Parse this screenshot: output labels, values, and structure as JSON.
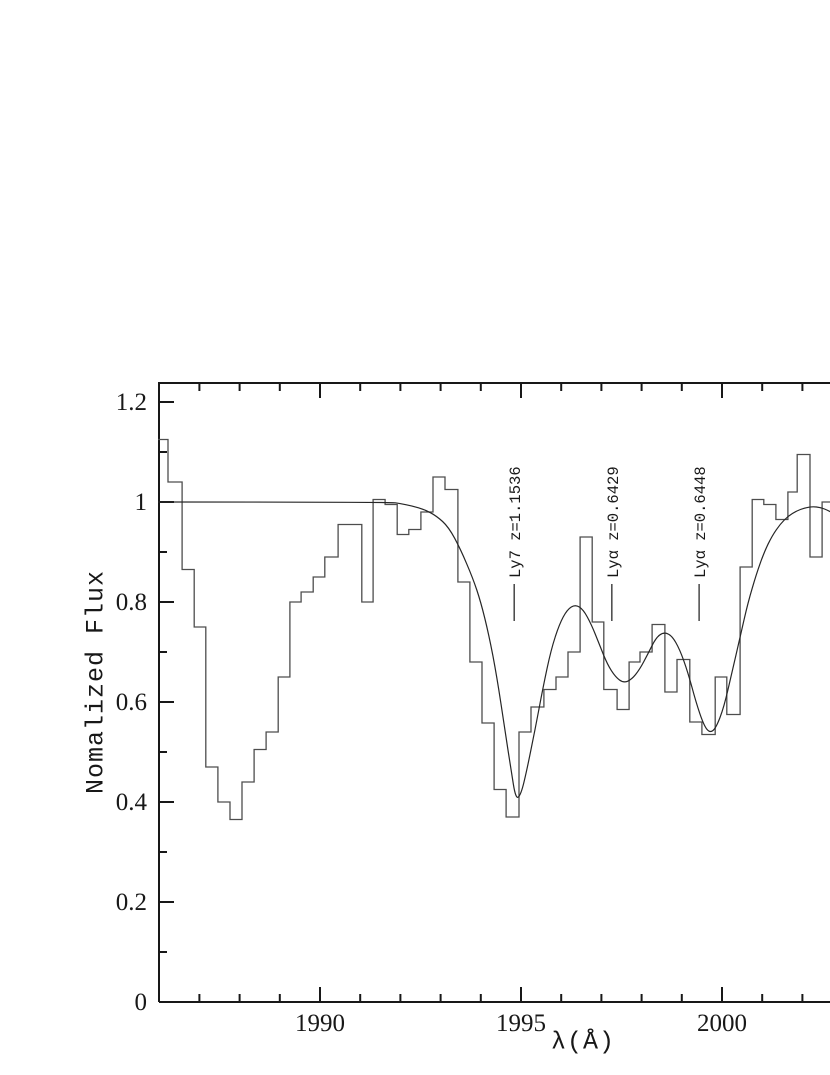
{
  "figure": {
    "background": "#ffffff",
    "ink_color": "#181818",
    "histogram_color": "#4d4d4d",
    "model_color": "#262626"
  },
  "chart_data": {
    "type": "line",
    "title": "",
    "xlabel": "λ(Å)",
    "ylabel": "Nomalized Flux",
    "x_visible_range": [
      1985.97,
      2002.7
    ],
    "ylim": [
      0,
      1.24
    ],
    "grid": false,
    "legend": "none",
    "x_major_ticks": [
      {
        "value": 1990,
        "label": "1990"
      },
      {
        "value": 1995,
        "label": "1995"
      },
      {
        "value": 2000,
        "label": "2000"
      }
    ],
    "x_minor_ticks": {
      "start": 1986,
      "end": 2002,
      "step": 1
    },
    "y_major_ticks": [
      {
        "value": 1.2,
        "label": "1.2"
      },
      {
        "value": 1.0,
        "label": "1"
      },
      {
        "value": 0.8,
        "label": "0.8"
      },
      {
        "value": 0.6,
        "label": "0.6"
      },
      {
        "value": 0.4,
        "label": "0.4"
      },
      {
        "value": 0.2,
        "label": "0.2"
      },
      {
        "value": 0,
        "label": "0"
      }
    ],
    "y_minor_ticks": {
      "start": 0.1,
      "end": 1.2,
      "step": 0.1
    },
    "series": [
      {
        "name": "observed-spectrum-histogram",
        "style": "step",
        "bin_edges": [
          1985.97,
          1986.22,
          1986.57,
          1986.87,
          1987.16,
          1987.46,
          1987.76,
          1988.06,
          1988.36,
          1988.66,
          1988.96,
          1989.25,
          1989.53,
          1989.83,
          1990.12,
          1990.45,
          1990.75,
          1991.04,
          1991.32,
          1991.62,
          1991.92,
          1992.21,
          1992.51,
          1992.81,
          1993.11,
          1993.43,
          1993.73,
          1994.03,
          1994.33,
          1994.63,
          1994.95,
          1995.25,
          1995.57,
          1995.87,
          1996.17,
          1996.47,
          1996.77,
          1997.06,
          1997.39,
          1997.69,
          1997.96,
          1998.26,
          1998.58,
          1998.88,
          1999.2,
          1999.5,
          1999.83,
          2000.12,
          2000.45,
          2000.75,
          2001.04,
          2001.34,
          2001.64,
          2001.87,
          2002.19,
          2002.49,
          2002.95
        ],
        "flux": [
          1.125,
          1.04,
          0.865,
          0.75,
          0.47,
          0.4,
          0.365,
          0.44,
          0.505,
          0.54,
          0.65,
          0.8,
          0.82,
          0.85,
          0.89,
          0.955,
          0.955,
          0.8,
          1.005,
          0.995,
          0.935,
          0.945,
          0.98,
          1.05,
          1.025,
          0.84,
          0.68,
          0.558,
          0.425,
          0.37,
          0.54,
          0.59,
          0.625,
          0.65,
          0.7,
          0.93,
          0.76,
          0.625,
          0.585,
          0.68,
          0.7,
          0.755,
          0.62,
          0.685,
          0.56,
          0.535,
          0.65,
          0.575,
          0.87,
          1.005,
          0.995,
          0.965,
          1.02,
          1.095,
          0.89,
          1.0
        ]
      },
      {
        "name": "model-fit",
        "style": "smooth",
        "points": [
          [
            1985.97,
            1.0
          ],
          [
            1991.75,
            1.0
          ],
          [
            1992.0,
            0.997
          ],
          [
            1992.3,
            0.992
          ],
          [
            1992.6,
            0.985
          ],
          [
            1992.9,
            0.972
          ],
          [
            1993.2,
            0.95
          ],
          [
            1993.5,
            0.905
          ],
          [
            1993.8,
            0.848
          ],
          [
            1994.0,
            0.8
          ],
          [
            1994.2,
            0.735
          ],
          [
            1994.4,
            0.65
          ],
          [
            1994.6,
            0.545
          ],
          [
            1994.75,
            0.465
          ],
          [
            1994.87,
            0.405
          ],
          [
            1995.0,
            0.415
          ],
          [
            1995.15,
            0.465
          ],
          [
            1995.35,
            0.545
          ],
          [
            1995.55,
            0.63
          ],
          [
            1995.75,
            0.705
          ],
          [
            1995.95,
            0.755
          ],
          [
            1996.15,
            0.785
          ],
          [
            1996.35,
            0.795
          ],
          [
            1996.55,
            0.785
          ],
          [
            1996.75,
            0.755
          ],
          [
            1996.95,
            0.715
          ],
          [
            1997.15,
            0.675
          ],
          [
            1997.35,
            0.65
          ],
          [
            1997.55,
            0.638
          ],
          [
            1997.75,
            0.645
          ],
          [
            1997.95,
            0.665
          ],
          [
            1998.15,
            0.695
          ],
          [
            1998.35,
            0.728
          ],
          [
            1998.55,
            0.74
          ],
          [
            1998.75,
            0.733
          ],
          [
            1998.95,
            0.705
          ],
          [
            1999.15,
            0.66
          ],
          [
            1999.35,
            0.6
          ],
          [
            1999.55,
            0.553
          ],
          [
            1999.7,
            0.538
          ],
          [
            1999.85,
            0.548
          ],
          [
            2000.05,
            0.59
          ],
          [
            2000.25,
            0.66
          ],
          [
            2000.45,
            0.73
          ],
          [
            2000.65,
            0.8
          ],
          [
            2000.85,
            0.855
          ],
          [
            2001.05,
            0.9
          ],
          [
            2001.25,
            0.933
          ],
          [
            2001.45,
            0.956
          ],
          [
            2001.65,
            0.972
          ],
          [
            2001.85,
            0.982
          ],
          [
            2002.05,
            0.988
          ],
          [
            2002.25,
            0.991
          ],
          [
            2002.45,
            0.989
          ],
          [
            2002.65,
            0.983
          ],
          [
            2002.9,
            0.97
          ]
        ]
      }
    ],
    "annotations": [
      {
        "label": "Ly7  z=1.1536",
        "lambda": 1994.83
      },
      {
        "label": "Lyα  z=0.6429",
        "lambda": 1997.26
      },
      {
        "label": "Lyα  z=0.6448",
        "lambda": 1999.43
      }
    ]
  }
}
